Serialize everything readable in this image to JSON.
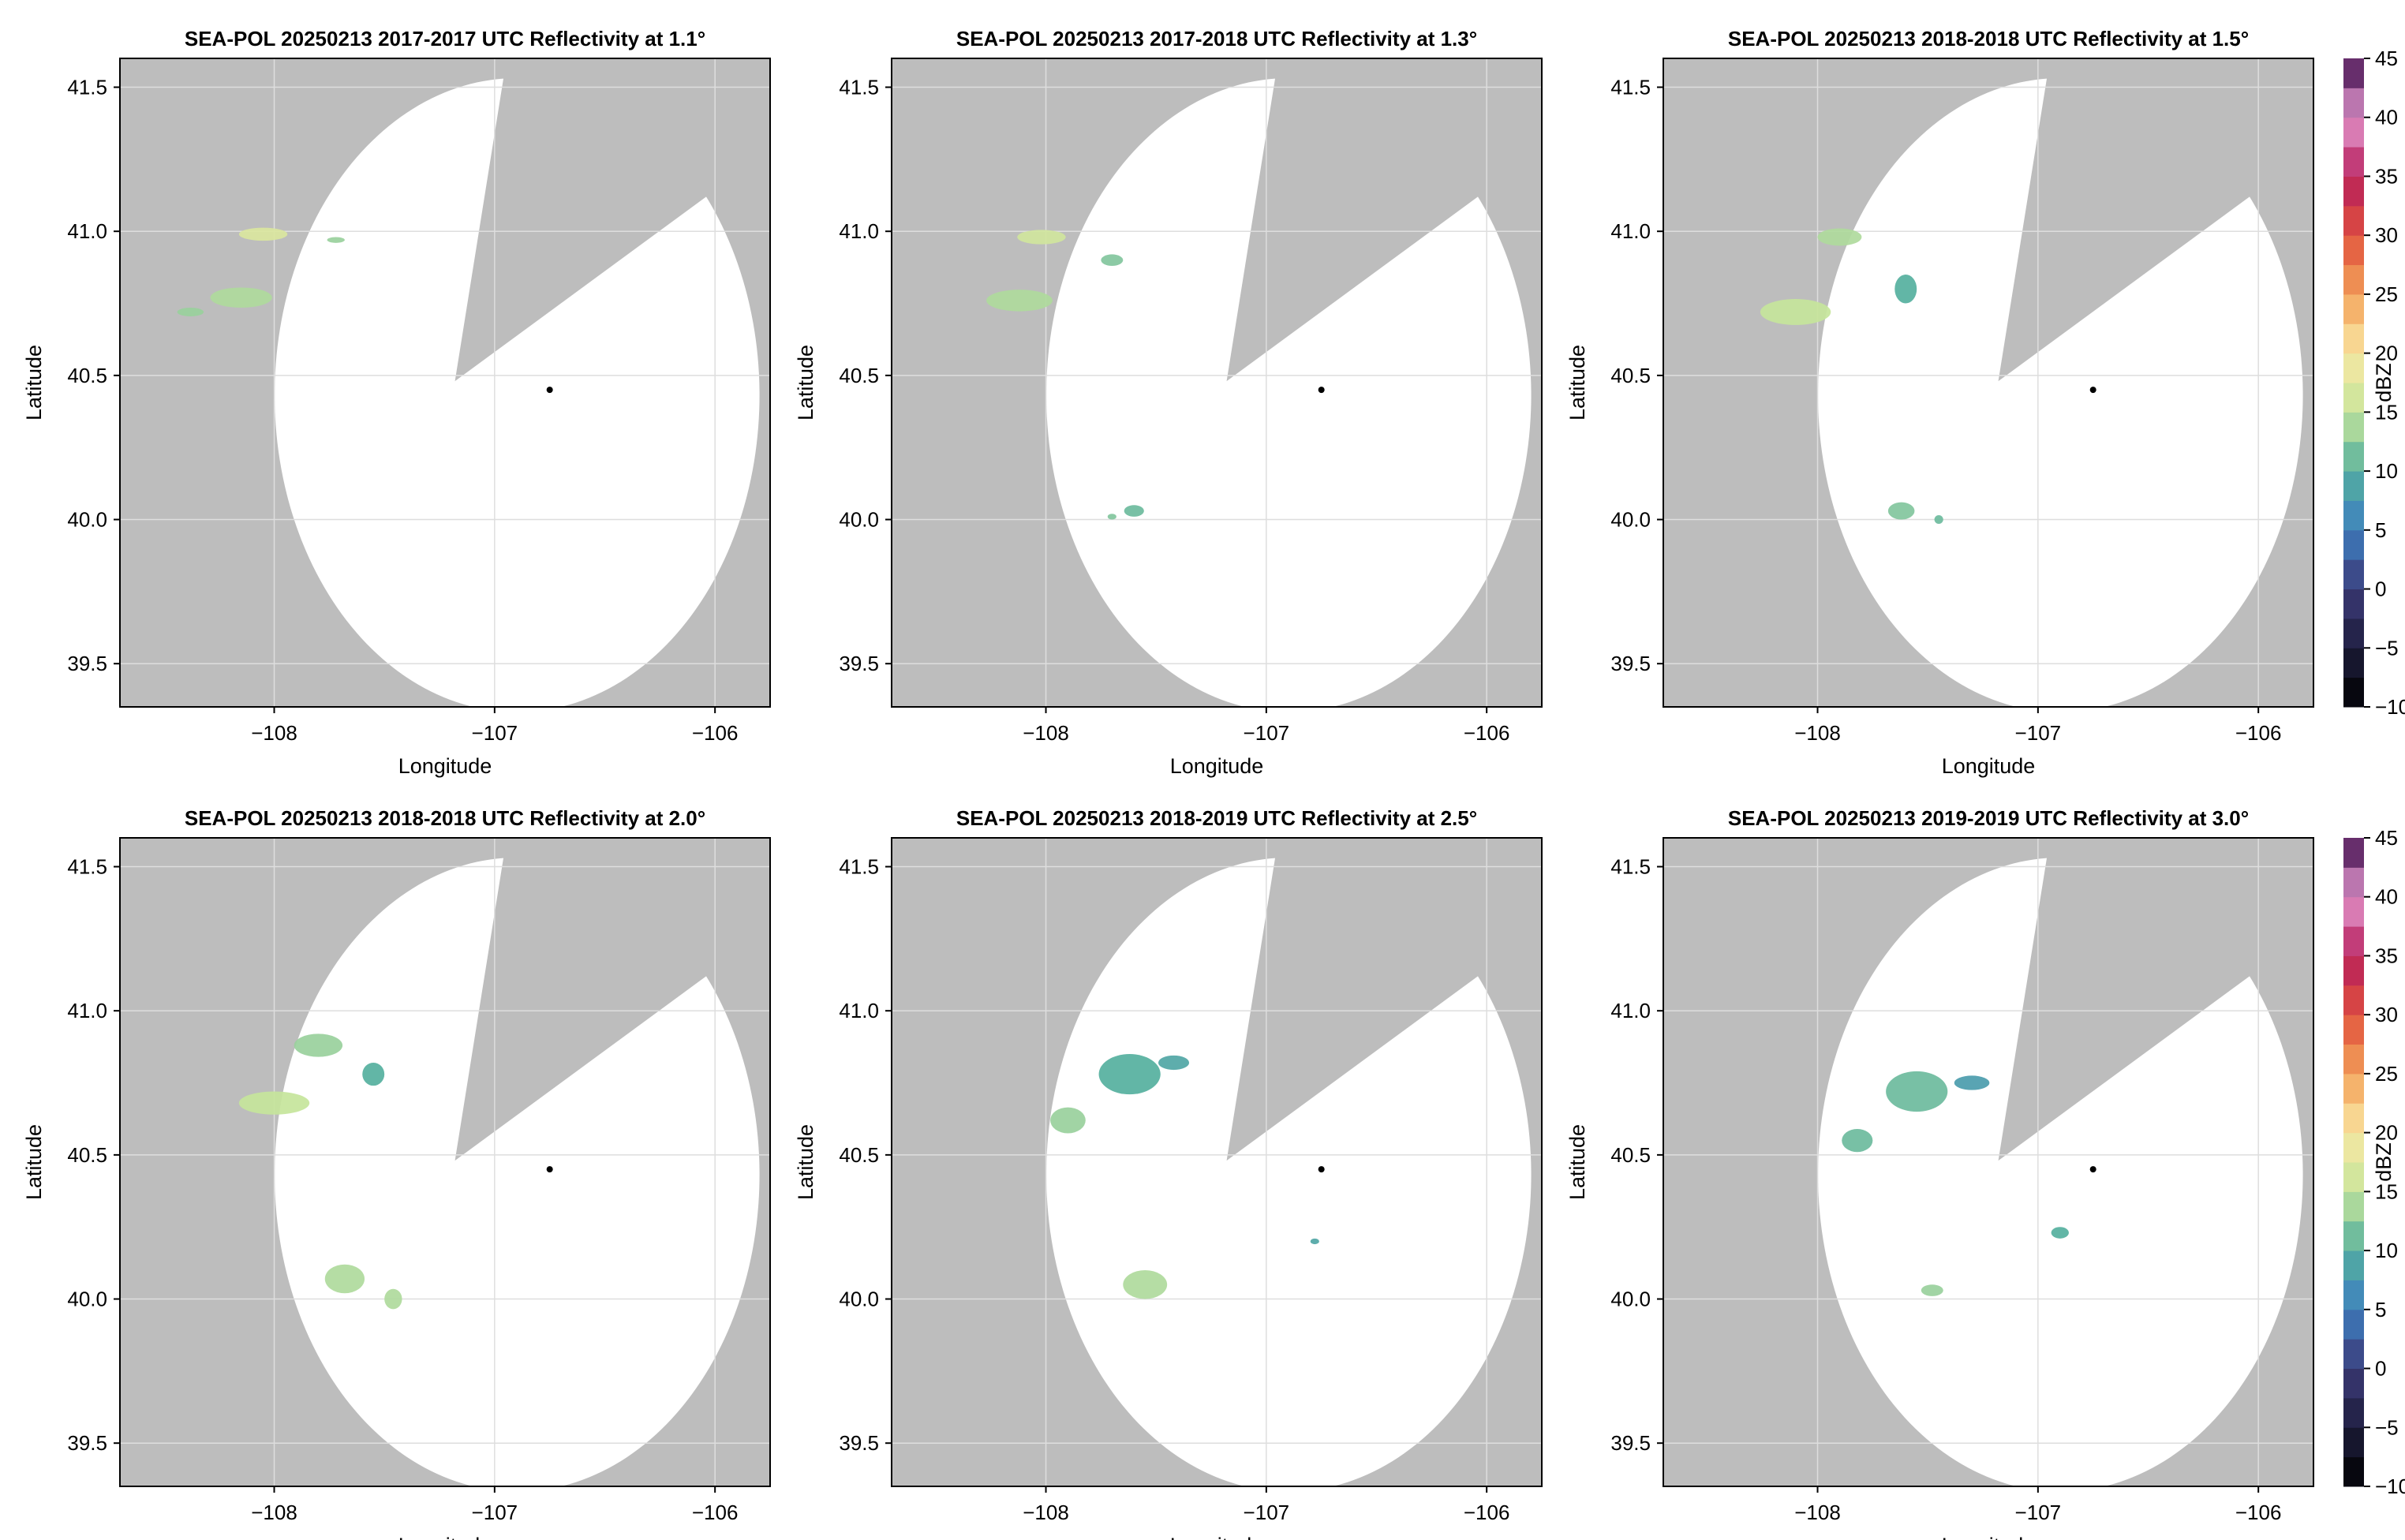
{
  "chart_data": [
    {
      "type": "heatmap",
      "title": "SEA-POL 20250213 2017-2017 UTC Reflectivity at 1.1°",
      "xlabel": "Longitude",
      "ylabel": "Latitude",
      "xlim": [
        -108.7,
        -105.75
      ],
      "ylim": [
        39.35,
        41.6
      ],
      "xticks": [
        -108,
        -107,
        -106
      ],
      "xtick_labels": [
        "−108",
        "−107",
        "−106"
      ],
      "yticks": [
        39.5,
        40.0,
        40.5,
        41.0,
        41.5
      ],
      "ytick_labels": [
        "39.5",
        "40.0",
        "40.5",
        "41.0",
        "41.5"
      ],
      "radar_center": [
        -107.18,
        40.48
      ],
      "radar_range_deg": 1.1,
      "blocked_sector": {
        "from_lon_lat": [
          -106.96,
          41.53
        ],
        "to_lon_lat": [
          -106.04,
          41.12
        ]
      },
      "marker": [
        -106.75,
        40.45
      ],
      "echoes": [
        {
          "center": [
            -108.05,
            40.99
          ],
          "size": [
            0.22,
            0.045
          ],
          "dbz": 17
        },
        {
          "center": [
            -107.72,
            40.97
          ],
          "size": [
            0.08,
            0.02
          ],
          "dbz": 13
        },
        {
          "center": [
            -108.15,
            40.77
          ],
          "size": [
            0.28,
            0.07
          ],
          "dbz": 14
        },
        {
          "center": [
            -108.38,
            40.72
          ],
          "size": [
            0.12,
            0.03
          ],
          "dbz": 13
        }
      ]
    },
    {
      "type": "heatmap",
      "title": "SEA-POL 20250213 2017-2018 UTC Reflectivity at 1.3°",
      "xlabel": "Longitude",
      "ylabel": "Latitude",
      "xlim": [
        -108.7,
        -105.75
      ],
      "ylim": [
        39.35,
        41.6
      ],
      "xticks": [
        -108,
        -107,
        -106
      ],
      "xtick_labels": [
        "−108",
        "−107",
        "−106"
      ],
      "yticks": [
        39.5,
        40.0,
        40.5,
        41.0,
        41.5
      ],
      "ytick_labels": [
        "39.5",
        "40.0",
        "40.5",
        "41.0",
        "41.5"
      ],
      "radar_center": [
        -107.18,
        40.48
      ],
      "radar_range_deg": 1.1,
      "blocked_sector": {
        "from_lon_lat": [
          -106.96,
          41.53
        ],
        "to_lon_lat": [
          -106.04,
          41.12
        ]
      },
      "marker": [
        -106.75,
        40.45
      ],
      "echoes": [
        {
          "center": [
            -108.02,
            40.98
          ],
          "size": [
            0.22,
            0.05
          ],
          "dbz": 16
        },
        {
          "center": [
            -107.7,
            40.9
          ],
          "size": [
            0.1,
            0.04
          ],
          "dbz": 12
        },
        {
          "center": [
            -108.12,
            40.76
          ],
          "size": [
            0.3,
            0.075
          ],
          "dbz": 14
        },
        {
          "center": [
            -107.6,
            40.03
          ],
          "size": [
            0.09,
            0.04
          ],
          "dbz": 11
        },
        {
          "center": [
            -107.7,
            40.01
          ],
          "size": [
            0.04,
            0.02
          ],
          "dbz": 12
        }
      ]
    },
    {
      "type": "heatmap",
      "title": "SEA-POL 20250213 2018-2018 UTC Reflectivity at 1.5°",
      "xlabel": "Longitude",
      "ylabel": "Latitude",
      "xlim": [
        -108.7,
        -105.75
      ],
      "ylim": [
        39.35,
        41.6
      ],
      "xticks": [
        -108,
        -107,
        -106
      ],
      "xtick_labels": [
        "−108",
        "−107",
        "−106"
      ],
      "yticks": [
        39.5,
        40.0,
        40.5,
        41.0,
        41.5
      ],
      "ytick_labels": [
        "39.5",
        "40.0",
        "40.5",
        "41.0",
        "41.5"
      ],
      "radar_center": [
        -107.18,
        40.48
      ],
      "radar_range_deg": 1.1,
      "blocked_sector": {
        "from_lon_lat": [
          -106.96,
          41.53
        ],
        "to_lon_lat": [
          -106.04,
          41.12
        ]
      },
      "marker": [
        -106.75,
        40.45
      ],
      "echoes": [
        {
          "center": [
            -107.9,
            40.98
          ],
          "size": [
            0.2,
            0.06
          ],
          "dbz": 14
        },
        {
          "center": [
            -108.1,
            40.72
          ],
          "size": [
            0.32,
            0.09
          ],
          "dbz": 15
        },
        {
          "center": [
            -107.6,
            40.8
          ],
          "size": [
            0.1,
            0.1
          ],
          "dbz": 10
        },
        {
          "center": [
            -107.62,
            40.03
          ],
          "size": [
            0.12,
            0.06
          ],
          "dbz": 12
        },
        {
          "center": [
            -107.45,
            40.0
          ],
          "size": [
            0.04,
            0.03
          ],
          "dbz": 11
        }
      ]
    },
    {
      "type": "heatmap",
      "title": "SEA-POL 20250213 2018-2018 UTC Reflectivity at 2.0°",
      "xlabel": "Longitude",
      "ylabel": "Latitude",
      "xlim": [
        -108.7,
        -105.75
      ],
      "ylim": [
        39.35,
        41.6
      ],
      "xticks": [
        -108,
        -107,
        -106
      ],
      "xtick_labels": [
        "−108",
        "−107",
        "−106"
      ],
      "yticks": [
        39.5,
        40.0,
        40.5,
        41.0,
        41.5
      ],
      "ytick_labels": [
        "39.5",
        "40.0",
        "40.5",
        "41.0",
        "41.5"
      ],
      "radar_center": [
        -107.18,
        40.48
      ],
      "radar_range_deg": 1.1,
      "blocked_sector": {
        "from_lon_lat": [
          -106.96,
          41.53
        ],
        "to_lon_lat": [
          -106.04,
          41.12
        ]
      },
      "marker": [
        -106.75,
        40.45
      ],
      "echoes": [
        {
          "center": [
            -107.8,
            40.88
          ],
          "size": [
            0.22,
            0.08
          ],
          "dbz": 13
        },
        {
          "center": [
            -108.0,
            40.68
          ],
          "size": [
            0.32,
            0.08
          ],
          "dbz": 15
        },
        {
          "center": [
            -107.55,
            40.78
          ],
          "size": [
            0.1,
            0.08
          ],
          "dbz": 10
        },
        {
          "center": [
            -107.68,
            40.07
          ],
          "size": [
            0.18,
            0.1
          ],
          "dbz": 14
        },
        {
          "center": [
            -107.46,
            40.0
          ],
          "size": [
            0.08,
            0.07
          ],
          "dbz": 14
        }
      ]
    },
    {
      "type": "heatmap",
      "title": "SEA-POL 20250213 2018-2019 UTC Reflectivity at 2.5°",
      "xlabel": "Longitude",
      "ylabel": "Latitude",
      "xlim": [
        -108.7,
        -105.75
      ],
      "ylim": [
        39.35,
        41.6
      ],
      "xticks": [
        -108,
        -107,
        -106
      ],
      "xtick_labels": [
        "−108",
        "−107",
        "−106"
      ],
      "yticks": [
        39.5,
        40.0,
        40.5,
        41.0,
        41.5
      ],
      "ytick_labels": [
        "39.5",
        "40.0",
        "40.5",
        "41.0",
        "41.5"
      ],
      "radar_center": [
        -107.18,
        40.48
      ],
      "radar_range_deg": 1.1,
      "blocked_sector": {
        "from_lon_lat": [
          -106.96,
          41.53
        ],
        "to_lon_lat": [
          -106.04,
          41.12
        ]
      },
      "marker": [
        -106.75,
        40.45
      ],
      "echoes": [
        {
          "center": [
            -107.62,
            40.78
          ],
          "size": [
            0.28,
            0.14
          ],
          "dbz": 10
        },
        {
          "center": [
            -107.9,
            40.62
          ],
          "size": [
            0.16,
            0.09
          ],
          "dbz": 13
        },
        {
          "center": [
            -107.42,
            40.82
          ],
          "size": [
            0.14,
            0.05
          ],
          "dbz": 9
        },
        {
          "center": [
            -107.55,
            40.05
          ],
          "size": [
            0.2,
            0.1
          ],
          "dbz": 14
        },
        {
          "center": [
            -106.78,
            40.2
          ],
          "size": [
            0.04,
            0.02
          ],
          "dbz": 9
        }
      ]
    },
    {
      "type": "heatmap",
      "title": "SEA-POL 20250213 2019-2019 UTC Reflectivity at 3.0°",
      "xlabel": "Longitude",
      "ylabel": "Latitude",
      "xlim": [
        -108.7,
        -105.75
      ],
      "ylim": [
        39.35,
        41.6
      ],
      "xticks": [
        -108,
        -107,
        -106
      ],
      "xtick_labels": [
        "−108",
        "−107",
        "−106"
      ],
      "yticks": [
        39.5,
        40.0,
        40.5,
        41.0,
        41.5
      ],
      "ytick_labels": [
        "39.5",
        "40.0",
        "40.5",
        "41.0",
        "41.5"
      ],
      "radar_center": [
        -107.18,
        40.48
      ],
      "radar_range_deg": 1.1,
      "blocked_sector": {
        "from_lon_lat": [
          -106.96,
          41.53
        ],
        "to_lon_lat": [
          -106.04,
          41.12
        ]
      },
      "marker": [
        -106.75,
        40.45
      ],
      "echoes": [
        {
          "center": [
            -107.55,
            40.72
          ],
          "size": [
            0.28,
            0.14
          ],
          "dbz": 11
        },
        {
          "center": [
            -107.3,
            40.75
          ],
          "size": [
            0.16,
            0.05
          ],
          "dbz": 8
        },
        {
          "center": [
            -107.82,
            40.55
          ],
          "size": [
            0.14,
            0.08
          ],
          "dbz": 11
        },
        {
          "center": [
            -106.9,
            40.23
          ],
          "size": [
            0.08,
            0.04
          ],
          "dbz": 10
        },
        {
          "center": [
            -107.48,
            40.03
          ],
          "size": [
            0.1,
            0.04
          ],
          "dbz": 13
        }
      ]
    }
  ],
  "colorbar": {
    "label": "dBZ",
    "min": -10,
    "max": 45,
    "step": 2.5,
    "ticks": [
      -10,
      -5,
      0,
      5,
      10,
      15,
      20,
      25,
      30,
      35,
      40,
      45
    ],
    "tick_labels": [
      "−10",
      "−5",
      "0",
      "5",
      "10",
      "15",
      "20",
      "25",
      "30",
      "35",
      "40",
      "45"
    ],
    "color_stops": [
      {
        "value": -10,
        "color": "#000000"
      },
      {
        "value": 0,
        "color": "#3b3a78"
      },
      {
        "value": 5,
        "color": "#3d7fc0"
      },
      {
        "value": 10,
        "color": "#55b09e"
      },
      {
        "value": 15,
        "color": "#c6e59b"
      },
      {
        "value": 20,
        "color": "#f9e7a3"
      },
      {
        "value": 25,
        "color": "#f3a25a"
      },
      {
        "value": 30,
        "color": "#e0503d"
      },
      {
        "value": 35,
        "color": "#b61e5c"
      },
      {
        "value": 40,
        "color": "#e59ad0"
      },
      {
        "value": 45,
        "color": "#3d0a4a"
      }
    ]
  },
  "colors": {
    "blocked": "#bdbdbd",
    "coverage": "#ffffff",
    "grid": "#dedede",
    "axis": "#000000"
  }
}
